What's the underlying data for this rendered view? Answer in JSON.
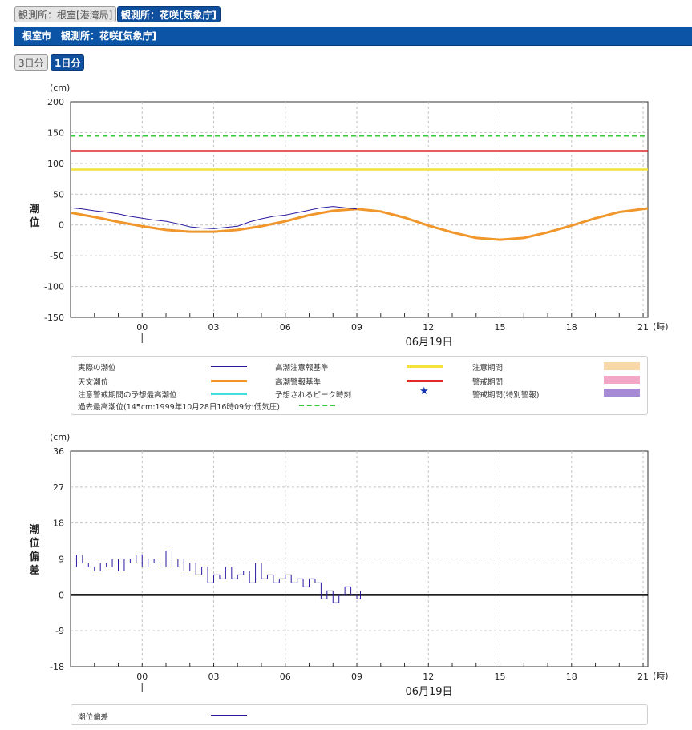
{
  "station_tabs": [
    {
      "label": "観測所：根室[港湾局]",
      "active": false
    },
    {
      "label": "観測所：花咲[気象庁]",
      "active": true
    }
  ],
  "station_bar": {
    "title": "根室市　観測所：花咲[気象庁]"
  },
  "range_tabs": [
    {
      "label": "3日分",
      "active": false
    },
    {
      "label": "1日分",
      "active": true
    }
  ],
  "colors": {
    "observed": "#2a1aa0",
    "astronomical": "#f0962a",
    "caution": "#f2e23a",
    "warning": "#e02828",
    "record": "#33cc33",
    "forecast_peak": "#44dddd",
    "peak_star": "#1030b0",
    "caution_period": "#f8d7a8",
    "warning_period": "#f4a6c6",
    "special_period": "#a68ad8"
  },
  "chart_data": [
    {
      "type": "line",
      "ylabel": "潮位",
      "yunit": "(cm)",
      "xunit": "(時)",
      "date_label": "06月19日",
      "ylim": [
        -150,
        200
      ],
      "yticks": [
        200,
        150,
        100,
        50,
        0,
        -50,
        -100,
        -150
      ],
      "xlim": [
        -3,
        21.2
      ],
      "xticks": [
        0,
        3,
        6,
        9,
        12,
        15,
        18,
        21
      ],
      "xtick_labels": [
        "00",
        "03",
        "06",
        "09",
        "12",
        "15",
        "18",
        "21"
      ],
      "grid": true,
      "thresholds": [
        {
          "name": "過去最高潮位",
          "value": 145,
          "style": "dashed",
          "color": "#33cc33"
        },
        {
          "name": "高潮警報基準",
          "value": 120,
          "style": "solid",
          "color": "#e02828"
        },
        {
          "name": "高潮注意報基準",
          "value": 90,
          "style": "solid",
          "color": "#f2e23a"
        }
      ],
      "series": [
        {
          "name": "天文潮位",
          "x": [
            -3,
            -2,
            -1,
            0,
            1,
            2,
            3,
            4,
            5,
            6,
            7,
            8,
            9,
            10,
            11,
            12,
            13,
            14,
            15,
            16,
            17,
            18,
            19,
            20,
            21,
            21.2
          ],
          "y": [
            20,
            13,
            5,
            -2,
            -8,
            -11,
            -11,
            -8,
            -2,
            6,
            16,
            23,
            26,
            22,
            12,
            -1,
            -12,
            -21,
            -24,
            -21,
            -12,
            -1,
            11,
            21,
            26,
            27
          ]
        },
        {
          "name": "実際の潮位",
          "x": [
            -3,
            -2.5,
            -2,
            -1.5,
            -1,
            -0.5,
            0,
            0.5,
            1,
            1.5,
            2,
            2.5,
            3,
            3.5,
            4,
            4.5,
            5,
            5.5,
            6,
            6.5,
            7,
            7.5,
            8,
            8.5,
            9
          ],
          "y": [
            28,
            26,
            23,
            21,
            18,
            14,
            11,
            8,
            6,
            2,
            -3,
            -5,
            -6,
            -4,
            -2,
            5,
            10,
            14,
            16,
            20,
            24,
            28,
            30,
            28,
            26
          ]
        }
      ]
    },
    {
      "type": "line",
      "ylabel": "潮位偏差",
      "yunit": "(cm)",
      "xunit": "(時)",
      "date_label": "06月19日",
      "ylim": [
        -18,
        36
      ],
      "yticks": [
        36,
        27,
        18,
        9,
        0,
        -9,
        -18
      ],
      "xlim": [
        -3,
        21.2
      ],
      "xticks": [
        0,
        3,
        6,
        9,
        12,
        15,
        18,
        21
      ],
      "xtick_labels": [
        "00",
        "03",
        "06",
        "09",
        "12",
        "15",
        "18",
        "21"
      ],
      "grid": true,
      "series": [
        {
          "name": "潮位偏差",
          "x": [
            -3,
            -2.75,
            -2.5,
            -2.25,
            -2,
            -1.75,
            -1.5,
            -1.25,
            -1,
            -0.75,
            -0.5,
            -0.25,
            0,
            0.25,
            0.5,
            0.75,
            1,
            1.25,
            1.5,
            1.75,
            2,
            2.25,
            2.5,
            2.75,
            3,
            3.25,
            3.5,
            3.75,
            4,
            4.25,
            4.5,
            4.75,
            5,
            5.25,
            5.5,
            5.75,
            6,
            6.25,
            6.5,
            6.75,
            7,
            7.25,
            7.5,
            7.75,
            8,
            8.25,
            8.5,
            8.75,
            9,
            9.15
          ],
          "y": [
            7,
            10,
            8,
            7,
            6,
            8,
            7,
            9,
            6,
            9,
            8,
            10,
            7,
            9,
            8,
            7,
            11,
            7,
            9,
            6,
            8,
            5,
            7,
            3,
            5,
            4,
            7,
            4,
            5,
            6,
            3,
            8,
            4,
            5,
            3,
            4,
            5,
            3,
            4,
            2,
            4,
            3,
            -1,
            1,
            -2,
            0,
            2,
            0,
            -1,
            1
          ]
        }
      ]
    }
  ],
  "legend1": {
    "items": [
      {
        "label": "実際の潮位",
        "swatch": "line",
        "color": "#2a1aa0"
      },
      {
        "label": "天文潮位",
        "swatch": "thick",
        "color": "#f0962a"
      },
      {
        "label": "注意警戒期間の予想最高潮位",
        "swatch": "thick",
        "color": "#44dddd"
      },
      {
        "label": "高潮注意報基準",
        "swatch": "thick",
        "color": "#f2e23a"
      },
      {
        "label": "高潮警報基準",
        "swatch": "thick",
        "color": "#e02828"
      },
      {
        "label": "予想されるピーク時刻",
        "swatch": "star",
        "color": "#1030b0",
        "symbol": "★"
      },
      {
        "label": "注意期間",
        "swatch": "box",
        "color": "#f8d7a8"
      },
      {
        "label": "警戒期間",
        "swatch": "box",
        "color": "#f4a6c6"
      },
      {
        "label": "警戒期間(特別警報)",
        "swatch": "box",
        "color": "#a68ad8"
      },
      {
        "label": "過去最高潮位(145cm:1999年10月28日16時09分:低気圧)",
        "swatch": "dash",
        "color": "#33cc33"
      }
    ]
  },
  "legend2": {
    "items": [
      {
        "label": "潮位偏差",
        "swatch": "line",
        "color": "#2a1aa0"
      }
    ]
  }
}
